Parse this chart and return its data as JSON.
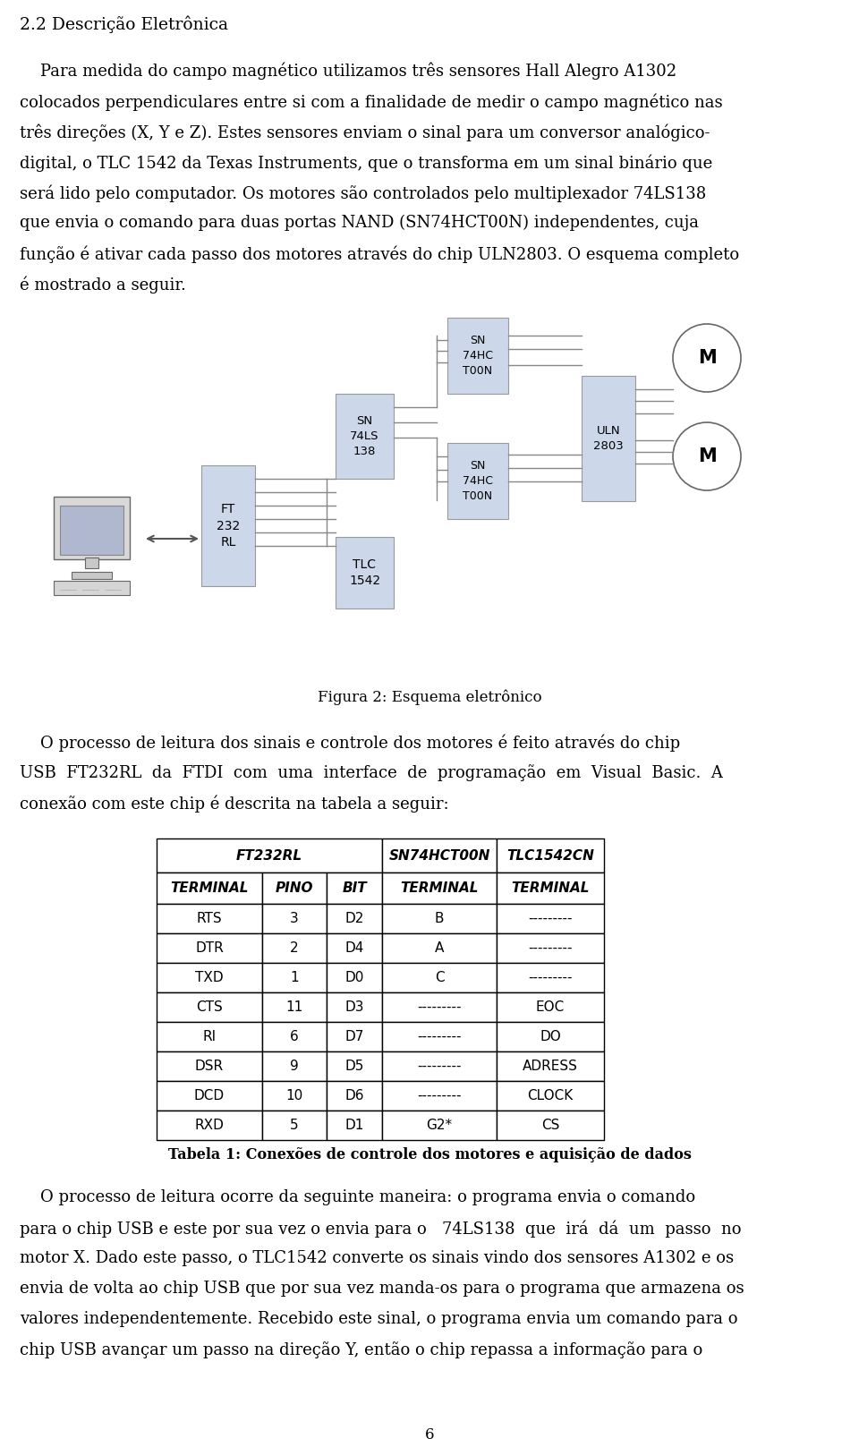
{
  "title_section": "2.2 Descrição Eletrônica",
  "para1_lines": [
    "    Para medida do campo magnético utilizamos três sensores Hall Alegro A1302",
    "colocados perpendiculares entre si com a finalidade de medir o campo magnético nas",
    "três direções (X, Y e Z). Estes sensores enviam o sinal para um conversor analógico-",
    "digital, o TLC 1542 da Texas Instruments, que o transforma em um sinal binário que",
    "será lido pelo computador. Os motores são controlados pelo multiplexador 74LS138",
    "que envia o comando para duas portas NAND (SN74HCT00N) independentes, cuja",
    "função é ativar cada passo dos motores através do chip ULN2803. O esquema completo",
    "é mostrado a seguir."
  ],
  "fig_caption": "Figura 2: Esquema eletrônico",
  "para2_lines": [
    "    O processo de leitura dos sinais e controle dos motores é feito através do chip",
    "USB  FT232RL  da  FTDI  com  uma  interface  de  programação  em  Visual  Basic.  A",
    "conexão com este chip é descrita na tabela a seguir:"
  ],
  "table_headers": [
    "FT232RL",
    "SN74HCT00N",
    "TLC1542CN"
  ],
  "table_subheaders": [
    "TERMINAL",
    "PINO",
    "BIT",
    "TERMINAL",
    "TERMINAL"
  ],
  "table_rows": [
    [
      "RTS",
      "3",
      "D2",
      "B",
      "---------"
    ],
    [
      "DTR",
      "2",
      "D4",
      "A",
      "---------"
    ],
    [
      "TXD",
      "1",
      "D0",
      "C",
      "---------"
    ],
    [
      "CTS",
      "11",
      "D3",
      "---------",
      "EOC"
    ],
    [
      "RI",
      "6",
      "D7",
      "---------",
      "DO"
    ],
    [
      "DSR",
      "9",
      "D5",
      "---------",
      "ADRESS"
    ],
    [
      "DCD",
      "10",
      "D6",
      "---------",
      "CLOCK"
    ],
    [
      "RXD",
      "5",
      "D1",
      "G2*",
      "CS"
    ]
  ],
  "table_caption": "Tabela 1: Conexões de controle dos motores e aquisição de dados",
  "para3_lines": [
    "    O processo de leitura ocorre da seguinte maneira: o programa envia o comando",
    "para o chip USB e este por sua vez o envia para o   74LS138  que  irá  dá  um  passo  no",
    "motor X. Dado este passo, o TLC1542 converte os sinais vindo dos sensores A1302 e os",
    "envia de volta ao chip USB que por sua vez manda-os para o programa que armazena os",
    "valores independentemente. Recebido este sinal, o programa envia um comando para o",
    "chip USB avançar um passo na direção Y, então o chip repassa a informação para o"
  ],
  "page_number": "6",
  "bg_color": "#ffffff",
  "text_color": "#000000",
  "block_fill": "#ccd8ea",
  "block_edge": "#999999",
  "line_color": "#888888"
}
